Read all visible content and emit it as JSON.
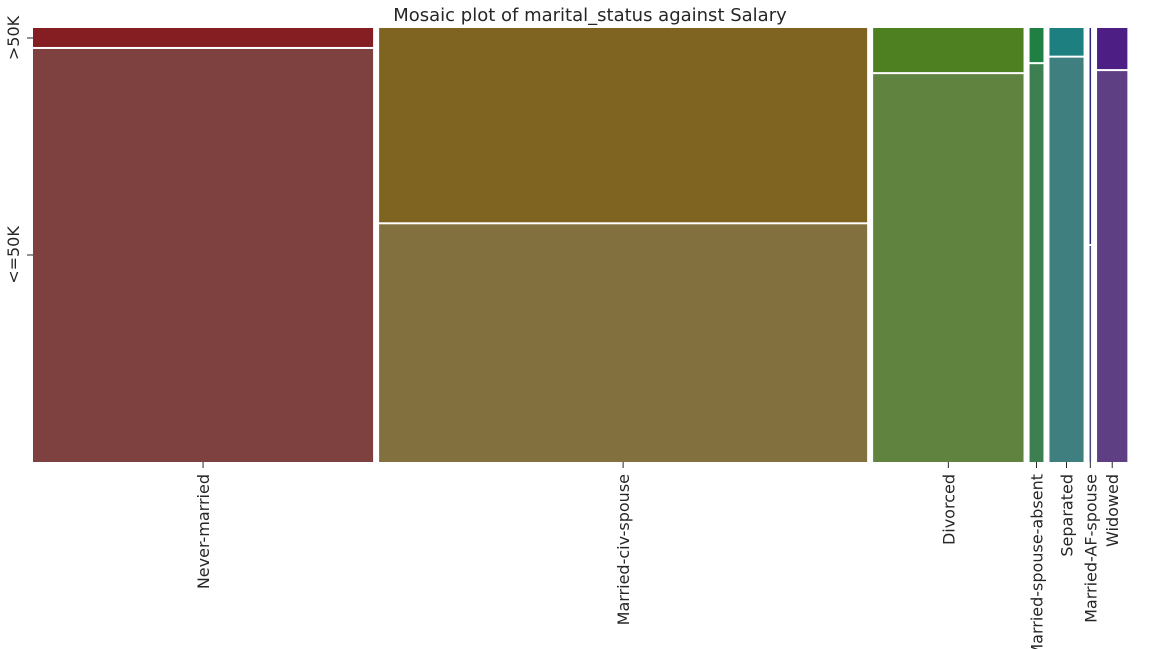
{
  "chart_data": {
    "type": "mosaic",
    "title": "Mosaic plot of marital_status against Salary",
    "x_variable": "marital_status",
    "y_variable": "Salary",
    "y_categories": [
      "<=50K",
      ">50K"
    ],
    "categories": [
      {
        "name": "Never-married",
        "width_fraction": 0.3152,
        "above_50k_fraction": 0.046,
        "colors": {
          "<=50K": "#7f4140",
          ">50K": "#841e22"
        }
      },
      {
        "name": "Married-civ-spouse",
        "width_fraction": 0.4523,
        "above_50k_fraction": 0.45,
        "colors": {
          "<=50K": "#82713f",
          ">50K": "#7f6421"
        }
      },
      {
        "name": "Divorced",
        "width_fraction": 0.1394,
        "above_50k_fraction": 0.104,
        "colors": {
          "<=50K": "#60833f",
          ">50K": "#4e7f21"
        }
      },
      {
        "name": "Married-spouse-absent",
        "width_fraction": 0.0129,
        "above_50k_fraction": 0.081,
        "colors": {
          "<=50K": "#3e7f52",
          ">50K": "#207f42"
        }
      },
      {
        "name": "Separated",
        "width_fraction": 0.0316,
        "above_50k_fraction": 0.066,
        "colors": {
          "<=50K": "#3f7f7f",
          ">50K": "#1d7f7f"
        }
      },
      {
        "name": "Married-AF-spouse",
        "width_fraction": 0.0007,
        "above_50k_fraction": 0.5,
        "colors": {
          "<=50K": "#47457f",
          ">50K": "#2b267f"
        }
      },
      {
        "name": "Widowed",
        "width_fraction": 0.0281,
        "above_50k_fraction": 0.097,
        "colors": {
          "<=50K": "#5f3f83",
          ">50K": "#4d1f84"
        }
      }
    ]
  }
}
